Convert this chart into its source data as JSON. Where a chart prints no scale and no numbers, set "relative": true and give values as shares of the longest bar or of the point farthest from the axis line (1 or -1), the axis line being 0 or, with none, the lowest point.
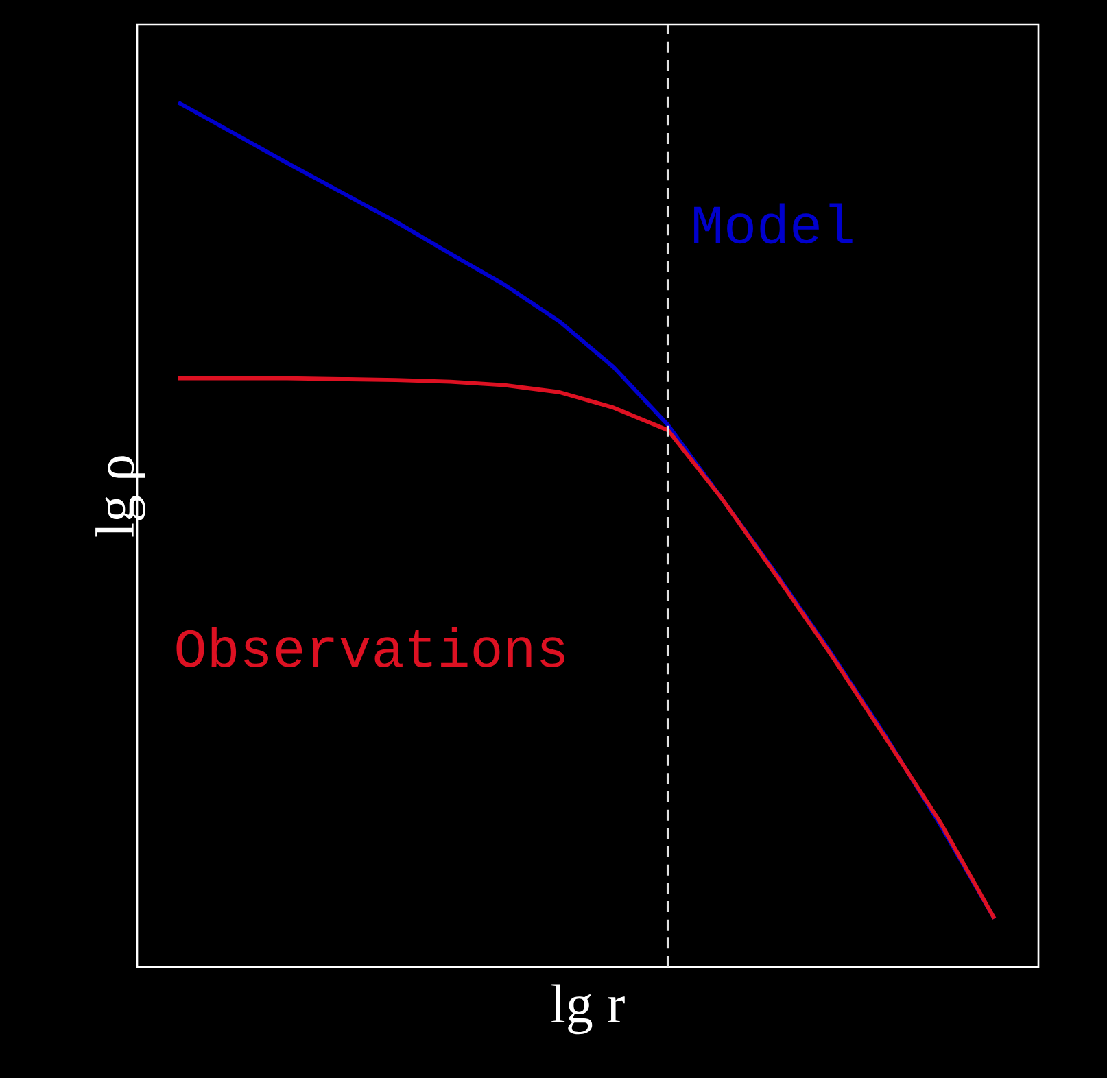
{
  "chart_data": {
    "type": "line",
    "xlabel": "lg r",
    "ylabel": "lg ρ",
    "relative": true,
    "categories": [
      null,
      null,
      null,
      null,
      null,
      null,
      null,
      null,
      null,
      null,
      null,
      null,
      null,
      null,
      null,
      null
    ],
    "series": [
      {
        "name": "Model",
        "color": "#0000cc",
        "values": [
          1.0,
          0.965,
          0.93,
          0.896,
          0.862,
          0.825,
          0.789,
          0.747,
          0.694,
          0.627,
          0.541,
          0.454,
          0.363,
          0.267,
          0.165,
          0.056
        ]
      },
      {
        "name": "Observations",
        "color": "#dd1122",
        "values": [
          0.681,
          0.681,
          0.681,
          0.68,
          0.679,
          0.677,
          0.673,
          0.665,
          0.647,
          0.621,
          0.541,
          0.452,
          0.361,
          0.265,
          0.168,
          0.056
        ]
      }
    ]
  }
}
